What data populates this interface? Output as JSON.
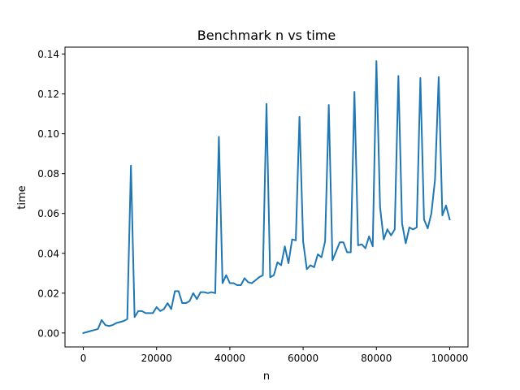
{
  "chart_data": {
    "type": "line",
    "title": "Benchmark n vs time",
    "xlabel": "n",
    "ylabel": "time",
    "xlim": [
      -5000,
      105000
    ],
    "ylim": [
      -0.007,
      0.1435
    ],
    "x_ticks": [
      0,
      20000,
      40000,
      60000,
      80000,
      100000
    ],
    "x_tick_labels": [
      "0",
      "20000",
      "40000",
      "60000",
      "80000",
      "100000"
    ],
    "y_ticks": [
      0.0,
      0.02,
      0.04,
      0.06,
      0.08,
      0.1,
      0.12,
      0.14
    ],
    "y_tick_labels": [
      "0.00",
      "0.02",
      "0.04",
      "0.06",
      "0.08",
      "0.10",
      "0.12",
      "0.14"
    ],
    "grid": false,
    "series": [
      {
        "name": "time",
        "color": "#1f77b4",
        "x": [
          0,
          1000,
          2000,
          3000,
          4000,
          5000,
          6000,
          7000,
          8000,
          9000,
          10000,
          11000,
          12000,
          13000,
          14000,
          15000,
          16000,
          17000,
          18000,
          19000,
          20000,
          21000,
          22000,
          23000,
          24000,
          25000,
          26000,
          27000,
          28000,
          29000,
          30000,
          31000,
          32000,
          33000,
          34000,
          35000,
          36000,
          37000,
          38000,
          39000,
          40000,
          41000,
          42000,
          43000,
          44000,
          45000,
          46000,
          47000,
          48000,
          49000,
          50000,
          51000,
          52000,
          53000,
          54000,
          55000,
          56000,
          57000,
          58000,
          59000,
          60000,
          61000,
          62000,
          63000,
          64000,
          65000,
          66000,
          67000,
          68000,
          69000,
          70000,
          71000,
          72000,
          73000,
          74000,
          75000,
          76000,
          77000,
          78000,
          79000,
          80000,
          81000,
          82000,
          83000,
          84000,
          85000,
          86000,
          87000,
          88000,
          89000,
          90000,
          91000,
          92000,
          93000,
          94000,
          95000,
          96000,
          97000,
          98000,
          99000,
          100000
        ],
        "values": [
          0.0,
          0.0005,
          0.001,
          0.0015,
          0.002,
          0.0065,
          0.004,
          0.0035,
          0.004,
          0.005,
          0.0055,
          0.006,
          0.007,
          0.084,
          0.008,
          0.011,
          0.011,
          0.01,
          0.01,
          0.01,
          0.013,
          0.011,
          0.012,
          0.015,
          0.012,
          0.021,
          0.021,
          0.015,
          0.015,
          0.016,
          0.02,
          0.017,
          0.0205,
          0.0205,
          0.02,
          0.0205,
          0.02,
          0.0985,
          0.025,
          0.029,
          0.025,
          0.025,
          0.024,
          0.024,
          0.0275,
          0.0255,
          0.025,
          0.0265,
          0.028,
          0.029,
          0.115,
          0.028,
          0.029,
          0.0355,
          0.034,
          0.0435,
          0.035,
          0.047,
          0.0465,
          0.1085,
          0.046,
          0.032,
          0.034,
          0.033,
          0.0395,
          0.038,
          0.046,
          0.1145,
          0.0365,
          0.041,
          0.0455,
          0.0455,
          0.0405,
          0.0405,
          0.121,
          0.044,
          0.0445,
          0.0425,
          0.0485,
          0.0435,
          0.1365,
          0.063,
          0.047,
          0.052,
          0.049,
          0.052,
          0.129,
          0.055,
          0.045,
          0.053,
          0.052,
          0.053,
          0.128,
          0.057,
          0.0525,
          0.06,
          0.077,
          0.1285,
          0.059,
          0.064,
          0.057
        ]
      }
    ]
  }
}
